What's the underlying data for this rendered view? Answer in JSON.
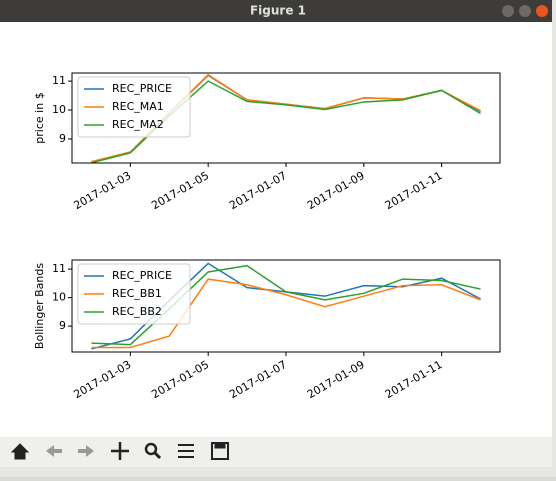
{
  "window": {
    "title": "Figure 1"
  },
  "chart_data": [
    {
      "type": "line",
      "ylabel": "price in $",
      "x": [
        "2017-01-02",
        "2017-01-03",
        "2017-01-04",
        "2017-01-05",
        "2017-01-06",
        "2017-01-07",
        "2017-01-08",
        "2017-01-09",
        "2017-01-10",
        "2017-01-11",
        "2017-01-12"
      ],
      "series": [
        {
          "name": "REC_PRICE",
          "color": "#1f77b4",
          "values": [
            8.2,
            8.55,
            9.9,
            11.2,
            10.35,
            10.2,
            10.05,
            10.42,
            10.38,
            10.68,
            9.95
          ]
        },
        {
          "name": "REC_MA1",
          "color": "#ff7f0e",
          "values": [
            8.22,
            8.55,
            9.9,
            11.22,
            10.35,
            10.2,
            10.05,
            10.42,
            10.38,
            10.68,
            9.98
          ]
        },
        {
          "name": "REC_MA2",
          "color": "#2ca02c",
          "values": [
            8.18,
            8.52,
            9.8,
            11.0,
            10.3,
            10.18,
            10.02,
            10.28,
            10.35,
            10.68,
            9.88
          ]
        }
      ],
      "xlim": [
        "2017-01-01T12:00",
        "2017-01-12T12:00"
      ],
      "xticks": [
        "2017-01-03",
        "2017-01-05",
        "2017-01-07",
        "2017-01-09",
        "2017-01-11"
      ],
      "ylim": [
        8.17,
        11.28
      ],
      "yticks": [
        9,
        10,
        11
      ],
      "legend": "upper left"
    },
    {
      "type": "line",
      "ylabel": "Bollinger Bands",
      "x": [
        "2017-01-02",
        "2017-01-03",
        "2017-01-04",
        "2017-01-05",
        "2017-01-06",
        "2017-01-07",
        "2017-01-08",
        "2017-01-09",
        "2017-01-10",
        "2017-01-11",
        "2017-01-12"
      ],
      "series": [
        {
          "name": "REC_PRICE",
          "color": "#1f77b4",
          "values": [
            8.2,
            8.55,
            9.9,
            11.2,
            10.35,
            10.2,
            10.05,
            10.42,
            10.38,
            10.68,
            9.95
          ]
        },
        {
          "name": "REC_BB1",
          "color": "#ff7f0e",
          "values": [
            8.25,
            8.25,
            8.65,
            10.65,
            10.45,
            10.1,
            9.68,
            10.05,
            10.42,
            10.45,
            9.92
          ]
        },
        {
          "name": "REC_BB2",
          "color": "#2ca02c",
          "values": [
            8.4,
            8.35,
            9.6,
            10.9,
            11.12,
            10.2,
            9.92,
            10.15,
            10.65,
            10.6,
            10.3
          ]
        }
      ],
      "xlim": [
        "2017-01-01T12:00",
        "2017-01-12T12:00"
      ],
      "xticks": [
        "2017-01-03",
        "2017-01-05",
        "2017-01-07",
        "2017-01-09",
        "2017-01-11"
      ],
      "ylim": [
        8.09,
        11.32
      ],
      "yticks": [
        9,
        10,
        11
      ],
      "legend": "upper left"
    }
  ]
}
